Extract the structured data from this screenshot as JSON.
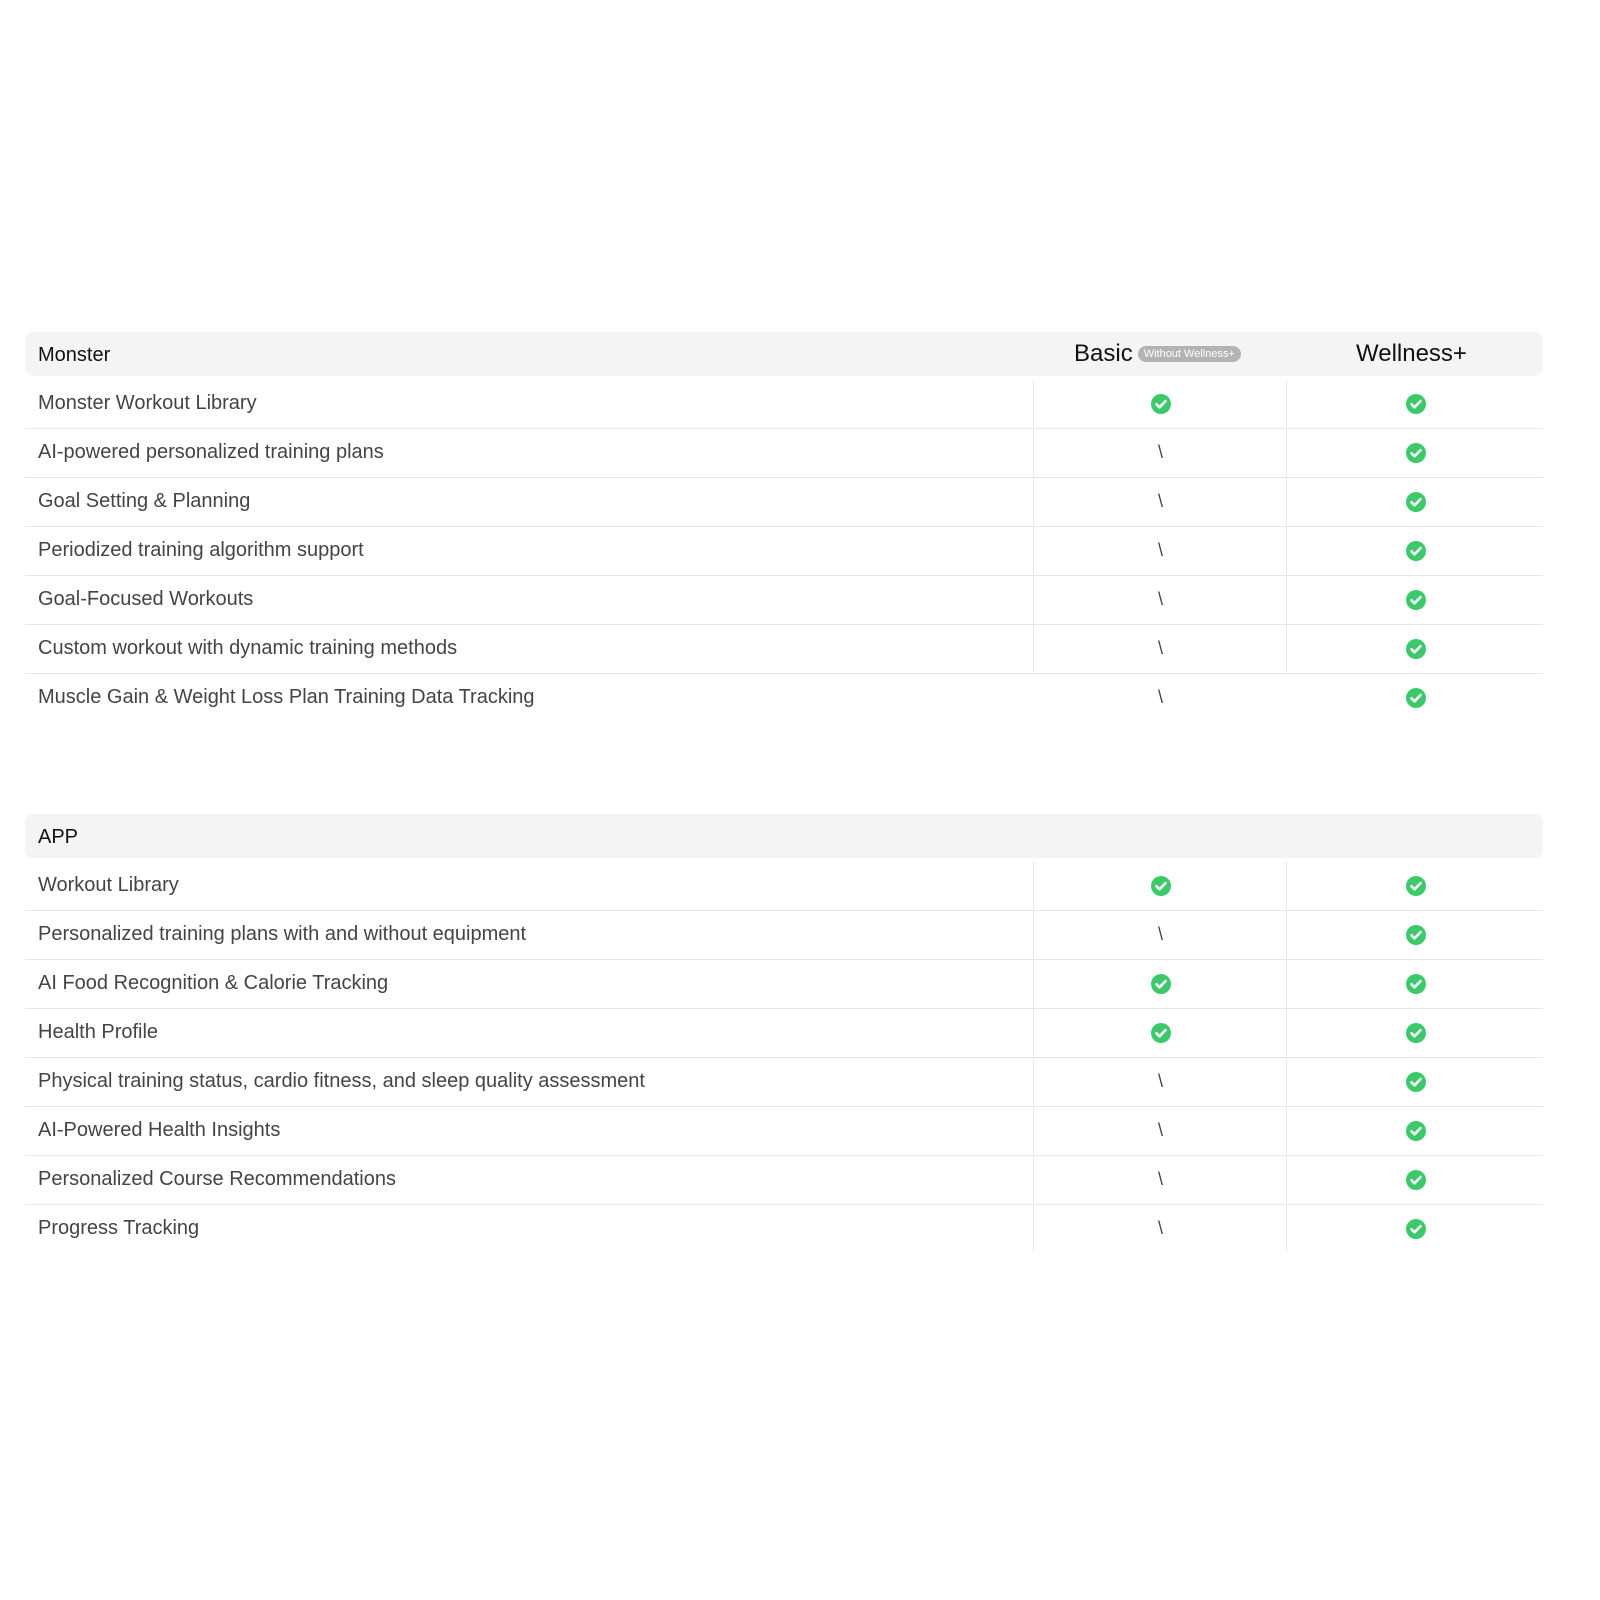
{
  "columns": {
    "basic": "Basic",
    "basic_badge": "Without Wellness+",
    "wellness": "Wellness+"
  },
  "colors": {
    "check": "#3cc96a",
    "header_bg": "#f4f4f4",
    "badge_bg": "#b3b3b3"
  },
  "sections": [
    {
      "title": "Monster",
      "rows": [
        {
          "feature": "Monster Workout Library",
          "basic": "check",
          "wellness": "check"
        },
        {
          "feature": "AI-powered personalized training plans",
          "basic": "\\",
          "wellness": "check"
        },
        {
          "feature": "Goal Setting & Planning",
          "basic": "\\",
          "wellness": "check"
        },
        {
          "feature": "Periodized training  algorithm support",
          "basic": "\\",
          "wellness": "check"
        },
        {
          "feature": "Goal-Focused Workouts",
          "basic": "\\",
          "wellness": "check"
        },
        {
          "feature": "Custom workout with dynamic training methods",
          "basic": "\\",
          "wellness": "check"
        },
        {
          "feature": "Muscle Gain & Weight Loss Plan Training Data Tracking",
          "basic": "\\",
          "wellness": "check"
        }
      ]
    },
    {
      "title": "APP",
      "rows": [
        {
          "feature": "Workout Library",
          "basic": "check",
          "wellness": "check"
        },
        {
          "feature": "Personalized training plans with and without equipment",
          "basic": "\\",
          "wellness": "check"
        },
        {
          "feature": "AI Food Recognition & Calorie Tracking",
          "basic": "check",
          "wellness": "check"
        },
        {
          "feature": "Health Profile",
          "basic": "check",
          "wellness": "check"
        },
        {
          "feature": "Physical training status, cardio fitness, and sleep quality assessment",
          "basic": "\\",
          "wellness": "check"
        },
        {
          "feature": "AI-Powered Health Insights",
          "basic": "\\",
          "wellness": "check"
        },
        {
          "feature": "Personalized Course Recommendations",
          "basic": "\\",
          "wellness": "check"
        },
        {
          "feature": "Progress Tracking",
          "basic": "\\",
          "wellness": "check"
        }
      ]
    }
  ]
}
